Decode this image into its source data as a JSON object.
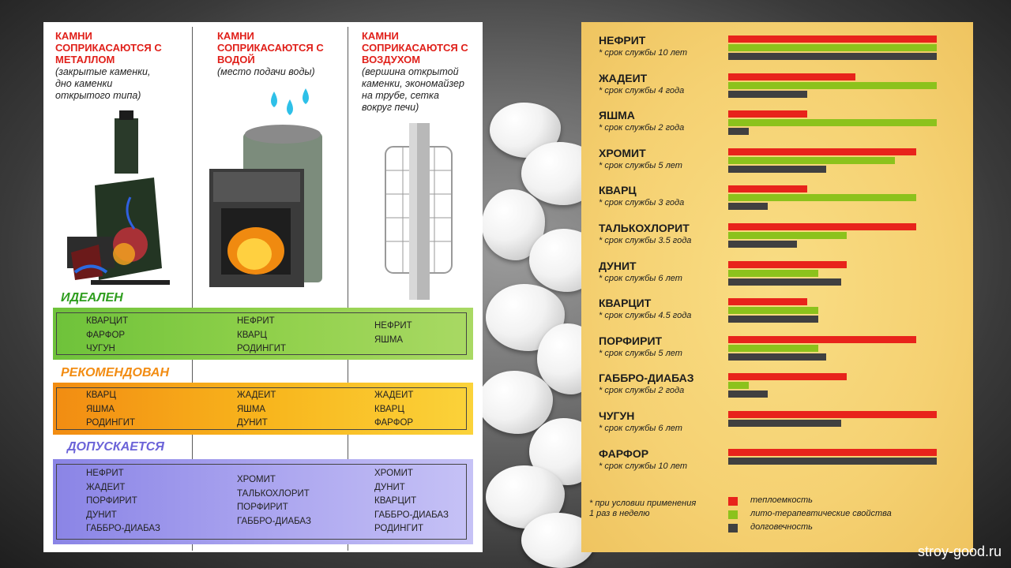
{
  "columns": [
    {
      "title": "КАМНИ\nСОПРИКАСАЮТСЯ С\nМЕТАЛЛОМ",
      "note": "(закрытые каменки,\nдно каменки\nоткрытого типа)"
    },
    {
      "title": "КАМНИ\nСОПРИКАСАЮТСЯ С\nВОДОЙ",
      "note": "(место подачи воды)"
    },
    {
      "title": "КАМНИ\nСОПРИКАСАЮТСЯ С\nВОЗДУХОМ",
      "note": "(вершина открытой\nкаменки, экономайзер\nна трубе, сетка\nвокруг печи)"
    }
  ],
  "bands": [
    {
      "title": "ИДЕАЛЕН",
      "color": "#2f9e1f",
      "lists": [
        [
          "КВАРЦИТ",
          "ФАРФОР",
          "ЧУГУН"
        ],
        [
          "НЕФРИТ",
          "КВАРЦ",
          "РОДИНГИТ"
        ],
        [
          "НЕФРИТ",
          "ЯШМА"
        ]
      ]
    },
    {
      "title": "РЕКОМЕНДОВАН",
      "color": "#f28c12",
      "lists": [
        [
          "КВАРЦ",
          "ЯШМА",
          "РОДИНГИТ"
        ],
        [
          "ЖАДЕИТ",
          "ЯШМА",
          "ДУНИТ"
        ],
        [
          "ЖАДЕИТ",
          "КВАРЦ",
          "ФАРФОР"
        ]
      ]
    },
    {
      "title": "ДОПУСКАЕТСЯ",
      "color": "#6b63d8",
      "lists": [
        [
          "НЕФРИТ",
          "ЖАДЕИТ",
          "ПОРФИРИТ",
          "ДУНИТ",
          "ГАББРО-ДИАБАЗ"
        ],
        [
          "ХРОМИТ",
          "ТАЛЬКОХЛОРИТ",
          "ПОРФИРИТ",
          "ГАББРО-ДИАБАЗ"
        ],
        [
          "ХРОМИТ",
          "ДУНИТ",
          "КВАРЦИТ",
          "ГАББРО-ДИАБАЗ",
          "РОДИНГИТ"
        ]
      ]
    }
  ],
  "chart_data": {
    "type": "bar",
    "orientation": "horizontal",
    "categories": [
      "НЕФРИТ",
      "ЖАДЕИТ",
      "ЯШМА",
      "ХРОМИТ",
      "КВАРЦ",
      "ТАЛЬКОХЛОРИТ",
      "ДУНИТ",
      "КВАРЦИТ",
      "ПОРФИРИТ",
      "ГАББРО-ДИАБАЗ",
      "ЧУГУН",
      "ФАРФОР"
    ],
    "category_notes": [
      "* срок службы 10 лет",
      "* срок службы 4 года",
      "* срок службы  2 года",
      "* срок службы  5 лет",
      "* срок службы 3 года",
      "* срок службы  3.5 года",
      "* срок службы 6 лет",
      "* срок службы 4.5 года",
      "* срок службы 5 лет",
      "* срок службы  2 года",
      "* срок службы  6 лет",
      "* срок службы 10 лет"
    ],
    "series": [
      {
        "name": "теплоемкость",
        "color": "#e8231b",
        "values": [
          10,
          6.1,
          3.8,
          9,
          3.8,
          9,
          5.7,
          3.8,
          9,
          5.7,
          10,
          10
        ]
      },
      {
        "name": "лито-терапевтические свойства",
        "color": "#8cc21c",
        "values": [
          10,
          10,
          10,
          8,
          9,
          5.7,
          4.3,
          4.3,
          4.3,
          1,
          null,
          null
        ]
      },
      {
        "name": "долговечность",
        "color": "#404040",
        "values": [
          10,
          3.8,
          1,
          4.7,
          1.9,
          3.3,
          5.4,
          4.3,
          4.7,
          1.9,
          5.4,
          10
        ]
      }
    ],
    "xlim": [
      0,
      10
    ],
    "legend_note": "*  при условии применения\n   1 раз в неделю",
    "legend_position": "bottom"
  },
  "watermark": "stroy-good.ru"
}
